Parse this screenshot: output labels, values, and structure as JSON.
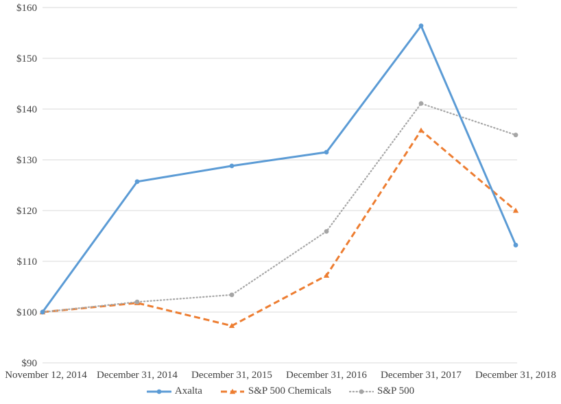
{
  "chart_data": {
    "type": "line",
    "title": "",
    "xlabel": "",
    "ylabel": "",
    "categories": [
      "November 12, 2014",
      "December 31, 2014",
      "December 31, 2015",
      "December 31, 2016",
      "December 31, 2017",
      "December 31, 2018"
    ],
    "series": [
      {
        "name": "Axalta",
        "values": [
          100.0,
          125.7,
          128.8,
          131.5,
          156.4,
          113.2
        ],
        "color": "#5B9BD5",
        "line_style": "solid",
        "marker": "circle"
      },
      {
        "name": "S&P 500 Chemicals",
        "values": [
          100.0,
          101.8,
          97.3,
          107.2,
          135.8,
          120.0
        ],
        "color": "#ED7D31",
        "line_style": "dashed",
        "marker": "triangle"
      },
      {
        "name": "S&P 500",
        "values": [
          100.0,
          102.0,
          103.4,
          115.9,
          141.1,
          134.9
        ],
        "color": "#A5A5A5",
        "line_style": "dotted",
        "marker": "circle"
      }
    ],
    "ylim": [
      90,
      160
    ],
    "y_tick_step": 10,
    "y_tick_prefix": "$",
    "y_tick_labels": [
      "$90",
      "$100",
      "$110",
      "$120",
      "$130",
      "$140",
      "$150",
      "$160"
    ],
    "grid": "horizontal",
    "gridline_color": "#D9D9D9",
    "axis_text_color": "#404040",
    "legend_position": "bottom"
  }
}
